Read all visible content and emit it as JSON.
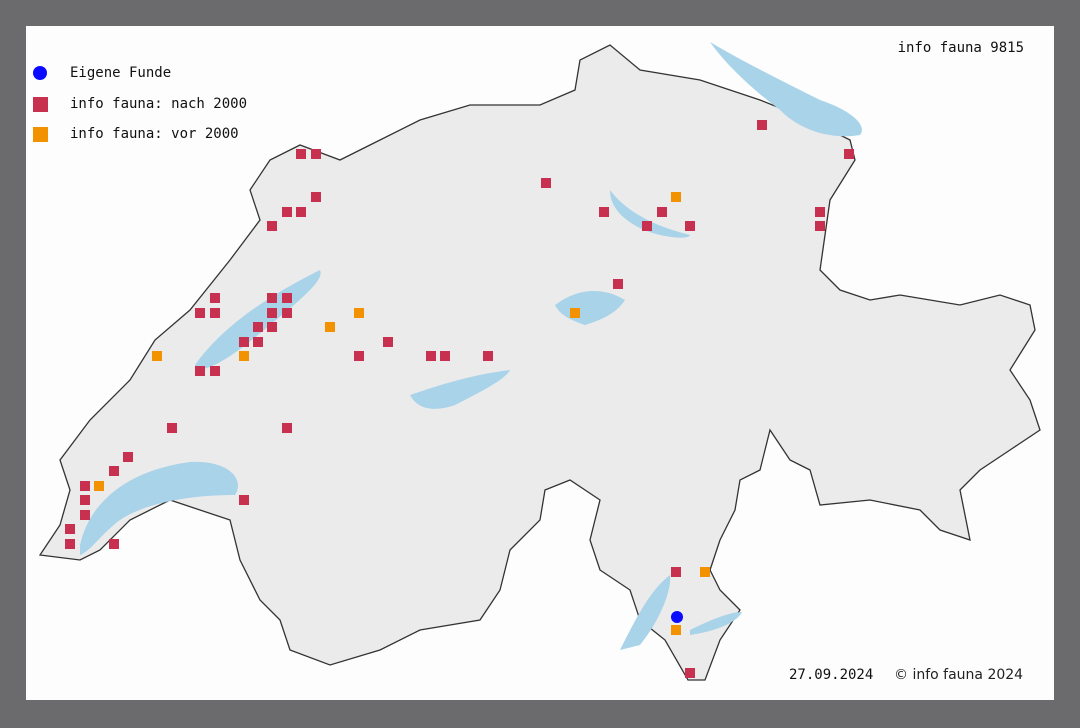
{
  "title": "info fauna 9815",
  "legend": [
    {
      "label": "Eigene Funde",
      "symbol": "circle",
      "color": "#0a0aff"
    },
    {
      "label": "info fauna: nach 2000",
      "symbol": "square",
      "color": "#c8304f"
    },
    {
      "label": "info fauna: vor 2000",
      "symbol": "square",
      "color": "#f39200"
    }
  ],
  "footer": {
    "date": "27.09.2024",
    "copyright": "© info fauna 2024"
  },
  "colors": {
    "land": "#ececec",
    "border": "#333333",
    "water": "#a8d3e8",
    "frame": "#6b6a6d"
  }
}
